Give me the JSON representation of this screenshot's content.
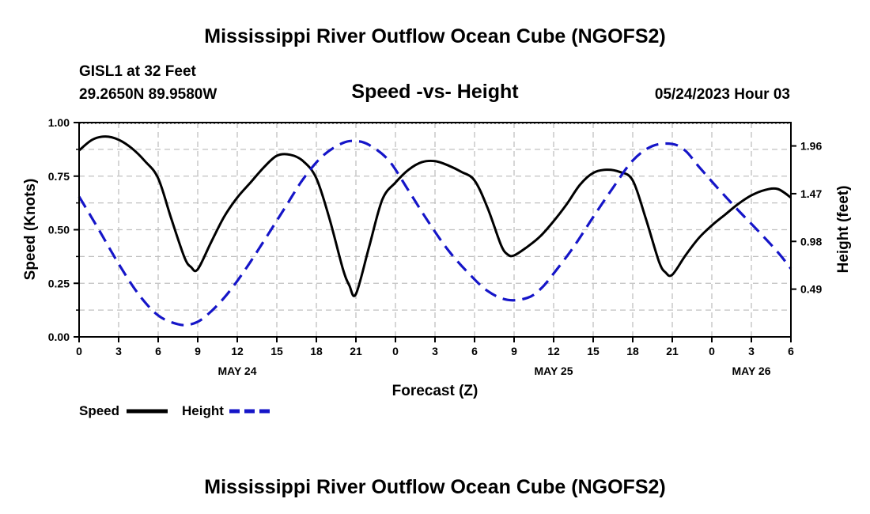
{
  "header": {
    "title": "Mississippi River Outflow Ocean Cube (NGOFS2)",
    "station": "GISL1 at 32 Feet",
    "coords": "29.2650N  89.9580W",
    "subtitle": "Speed -vs- Height",
    "timestamp": "05/24/2023 Hour 03"
  },
  "footer": {
    "title": "Mississippi River Outflow Ocean Cube (NGOFS2)"
  },
  "legend": {
    "speed_label": "Speed",
    "height_label": "Height"
  },
  "colors": {
    "speed": "#000000",
    "height": "#1515c8",
    "grid": "#c0c0c0"
  },
  "chart_data": {
    "type": "line",
    "xlabel": "Forecast (Z)",
    "ylabel": "Speed (Knots)",
    "y2label": "Height (feet)",
    "x_unit": "hours from 00Z May 24",
    "xlim": [
      0,
      54
    ],
    "ylim": [
      0,
      1.0
    ],
    "y2lim": [
      0,
      2.2
    ],
    "x_tick_labels": [
      "0",
      "3",
      "6",
      "9",
      "12",
      "15",
      "18",
      "21",
      "0",
      "3",
      "6",
      "9",
      "12",
      "15",
      "18",
      "21",
      "0",
      "3",
      "6"
    ],
    "date_labels": [
      {
        "x": 12,
        "label": "MAY 24"
      },
      {
        "x": 36,
        "label": "MAY 25"
      },
      {
        "x": 51,
        "label": "MAY 26"
      }
    ],
    "y_ticks": [
      "0.00",
      "0.25",
      "0.50",
      "0.75",
      "1.00"
    ],
    "y2_ticks": [
      "0.49",
      "0.98",
      "1.47",
      "1.96"
    ],
    "series": [
      {
        "name": "Speed",
        "axis": "left",
        "style": "solid",
        "x": [
          0,
          1,
          2,
          3,
          4,
          5,
          6,
          7,
          8,
          8.5,
          9,
          10,
          11,
          12,
          13,
          14,
          15,
          16,
          17,
          18,
          19,
          20,
          20.5,
          21,
          22,
          23,
          24,
          25,
          26,
          27,
          28,
          29,
          30,
          31,
          32,
          32.5,
          33,
          34,
          35,
          36,
          37,
          38,
          39,
          40,
          41,
          42,
          43,
          44,
          44.5,
          45,
          46,
          47,
          48,
          49,
          50,
          51,
          52,
          53,
          54
        ],
        "values": [
          0.87,
          0.92,
          0.935,
          0.92,
          0.88,
          0.82,
          0.74,
          0.55,
          0.37,
          0.325,
          0.315,
          0.44,
          0.56,
          0.65,
          0.72,
          0.79,
          0.845,
          0.85,
          0.82,
          0.74,
          0.55,
          0.32,
          0.24,
          0.2,
          0.42,
          0.64,
          0.72,
          0.78,
          0.815,
          0.82,
          0.8,
          0.77,
          0.73,
          0.6,
          0.43,
          0.385,
          0.38,
          0.42,
          0.47,
          0.54,
          0.62,
          0.71,
          0.765,
          0.78,
          0.77,
          0.73,
          0.55,
          0.35,
          0.3,
          0.29,
          0.38,
          0.46,
          0.52,
          0.57,
          0.62,
          0.66,
          0.685,
          0.69,
          0.65
        ]
      },
      {
        "name": "Height",
        "axis": "right",
        "style": "dashed",
        "x": [
          0,
          1.5,
          3,
          4.5,
          6,
          7.5,
          8.5,
          9.5,
          11,
          12.5,
          14,
          15.5,
          17,
          18.5,
          20,
          21,
          22,
          23.5,
          25,
          26.5,
          28,
          29.5,
          31,
          32.5,
          34,
          35,
          36,
          37.5,
          39,
          40.5,
          42,
          43.5,
          45,
          46,
          47,
          48.5,
          50,
          51.5,
          53,
          54
        ],
        "values": [
          1.44,
          1.1,
          0.75,
          0.44,
          0.22,
          0.13,
          0.13,
          0.2,
          0.4,
          0.67,
          0.98,
          1.3,
          1.62,
          1.86,
          1.99,
          2.01,
          1.97,
          1.81,
          1.5,
          1.18,
          0.89,
          0.66,
          0.47,
          0.38,
          0.4,
          0.49,
          0.65,
          0.92,
          1.23,
          1.53,
          1.81,
          1.96,
          1.98,
          1.91,
          1.75,
          1.52,
          1.3,
          1.09,
          0.87,
          0.7
        ]
      }
    ]
  }
}
